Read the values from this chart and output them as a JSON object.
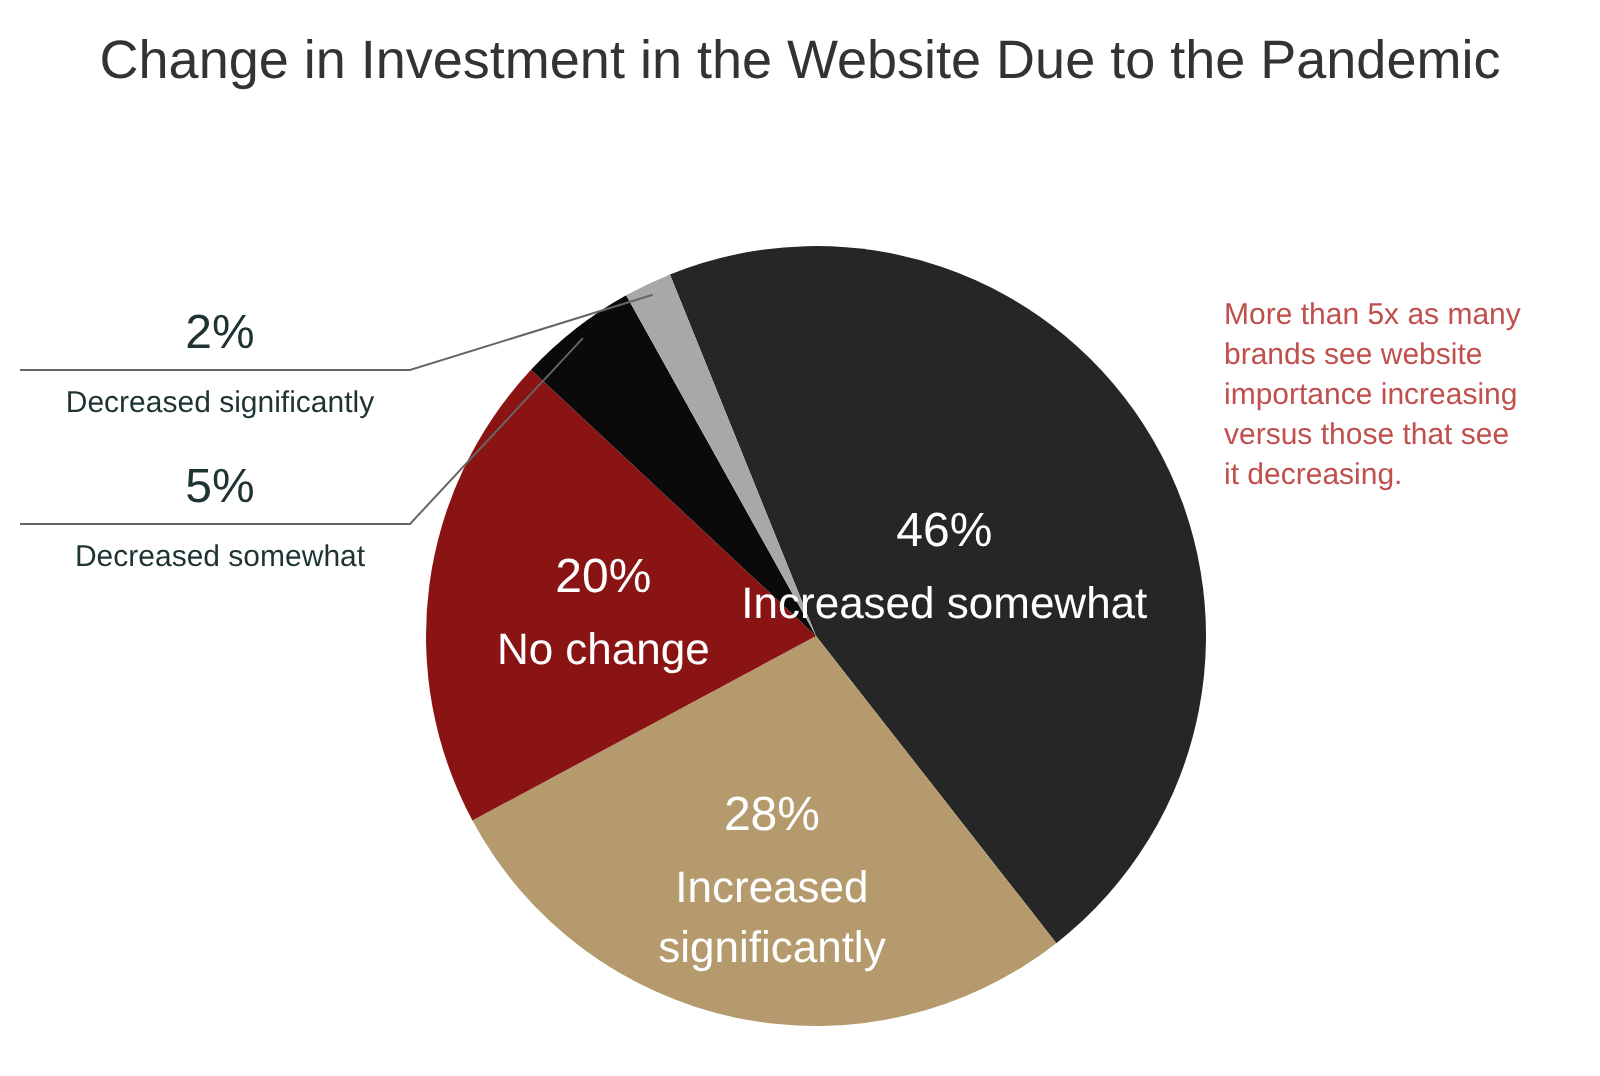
{
  "chart_data": {
    "type": "pie",
    "title": "Change in Investment in the Website Due to the Pandemic",
    "categories": [
      "Increased somewhat",
      "Increased significantly",
      "No change",
      "Decreased somewhat",
      "Decreased significantly"
    ],
    "values": [
      46,
      28,
      20,
      5,
      2
    ],
    "colors": [
      "#262626",
      "#b49a6c",
      "#8a1414",
      "#0a0a0a",
      "#a8a8a8"
    ],
    "value_labels": [
      "46%",
      "28%",
      "20%",
      "5%",
      "2%"
    ],
    "annotations": [
      "More than 5x as many brands see website importance increasing versus those that see it decreasing."
    ]
  }
}
